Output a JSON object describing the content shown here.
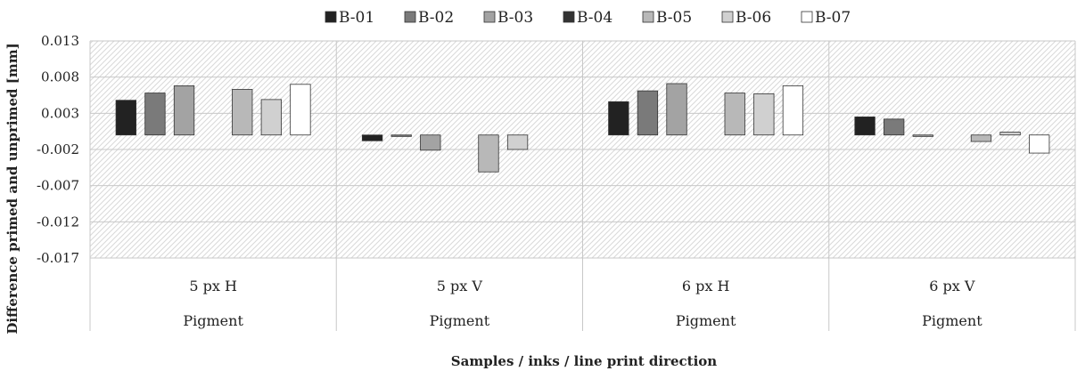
{
  "chart_data": {
    "type": "bar",
    "title": "",
    "xlabel": "Samples / inks / line print direction",
    "ylabel": "Difference primed and unprimed [mm]",
    "ylim": [
      -0.017,
      0.013
    ],
    "yticks": [
      "0.013",
      "0.008",
      "0.003",
      "-0.002",
      "-0.007",
      "-0.012",
      "-0.017"
    ],
    "grid": true,
    "legend_position": "top",
    "categories": [
      {
        "label": "5 px H",
        "group": "Pigment"
      },
      {
        "label": "5 px V",
        "group": "Pigment"
      },
      {
        "label": "6 px H",
        "group": "Pigment"
      },
      {
        "label": "6 px V",
        "group": "Pigment"
      }
    ],
    "series": [
      {
        "name": "B-01",
        "color": "#222222",
        "values": [
          0.0048,
          -0.0008,
          0.0046,
          0.0025
        ]
      },
      {
        "name": "B-02",
        "color": "#7a7a7a",
        "values": [
          0.0058,
          -0.0002,
          0.0061,
          0.0022
        ]
      },
      {
        "name": "B-03",
        "color": "#a3a3a3",
        "values": [
          0.0068,
          -0.0021,
          0.0071,
          -0.0002
        ]
      },
      {
        "name": "B-04",
        "color": "#333333",
        "values": [
          0.0,
          0.0,
          0.0,
          0.0
        ]
      },
      {
        "name": "B-05",
        "color": "#b8b8b8",
        "values": [
          0.0063,
          -0.0051,
          0.0058,
          -0.0009
        ]
      },
      {
        "name": "B-06",
        "color": "#d0d0d0",
        "values": [
          0.0049,
          -0.002,
          0.0057,
          0.0004
        ]
      },
      {
        "name": "B-07",
        "color": "#ffffff",
        "values": [
          0.007,
          0.0,
          0.0068,
          -0.0025
        ]
      }
    ]
  }
}
